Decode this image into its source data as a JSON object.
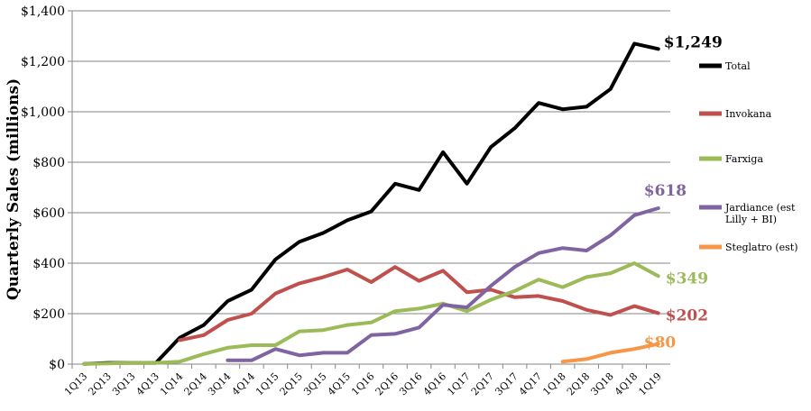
{
  "chart_data": {
    "type": "line",
    "ylabel": "Quarterly Sales (millions)",
    "xlabel": "",
    "ylim": [
      0,
      1400
    ],
    "yticks": [
      0,
      200,
      400,
      600,
      800,
      1000,
      1200,
      1400
    ],
    "ytick_labels": [
      "$0",
      "$200",
      "$400",
      "$600",
      "$800",
      "$1,000",
      "$1,200",
      "$1,400"
    ],
    "grid": "horizontal",
    "legend_position": "right",
    "categories": [
      "1Q13",
      "2Q13",
      "3Q13",
      "4Q13",
      "1Q14",
      "2Q14",
      "3Q14",
      "4Q14",
      "1Q15",
      "2Q15",
      "3Q15",
      "4Q15",
      "1Q16",
      "2Q16",
      "3Q16",
      "4Q16",
      "1Q17",
      "2Q17",
      "3Q17",
      "4Q17",
      "1Q18",
      "2Q18",
      "3Q18",
      "4Q18",
      "1Q19"
    ],
    "series": [
      {
        "name": "Total",
        "color": "#000000",
        "values": [
          1,
          5,
          5,
          5,
          105,
          155,
          250,
          295,
          415,
          485,
          520,
          570,
          605,
          715,
          690,
          840,
          715,
          860,
          935,
          1035,
          1010,
          1020,
          1090,
          1270,
          1249
        ],
        "end_label": "$1,249"
      },
      {
        "name": "Invokana",
        "color": "#c0504d",
        "values": [
          null,
          null,
          null,
          null,
          95,
          115,
          175,
          200,
          280,
          320,
          345,
          375,
          325,
          385,
          330,
          370,
          285,
          295,
          265,
          270,
          250,
          215,
          195,
          230,
          202
        ],
        "end_label": "$202"
      },
      {
        "name": "Farxiga",
        "color": "#9bbb59",
        "values": [
          1,
          3,
          5,
          5,
          10,
          40,
          65,
          75,
          75,
          130,
          135,
          155,
          165,
          210,
          220,
          240,
          210,
          255,
          290,
          335,
          305,
          345,
          360,
          400,
          349
        ],
        "end_label": "$349"
      },
      {
        "name": "Jardiance (est Lilly + BI)",
        "color": "#8064a2",
        "values": [
          null,
          null,
          null,
          null,
          null,
          null,
          15,
          15,
          60,
          35,
          45,
          45,
          115,
          120,
          145,
          235,
          225,
          310,
          385,
          440,
          460,
          450,
          510,
          590,
          618
        ],
        "end_label": "$618"
      },
      {
        "name": "Steglatro (est)",
        "color": "#f79646",
        "values": [
          null,
          null,
          null,
          null,
          null,
          null,
          null,
          null,
          null,
          null,
          null,
          null,
          null,
          null,
          null,
          null,
          null,
          null,
          null,
          null,
          10,
          20,
          45,
          60,
          80
        ],
        "end_label": "$80"
      }
    ]
  }
}
